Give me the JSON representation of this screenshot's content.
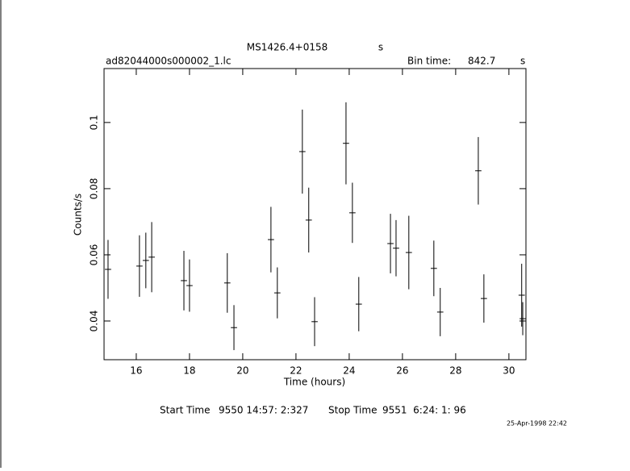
{
  "chart_data": {
    "type": "errorbar",
    "title": "MS1426.4+0158",
    "title_unit": "s",
    "subtitle": "ad82044000s000002_1.lc",
    "bin_time_label": "Bin time:",
    "bin_time": 842.7,
    "bin_time_unit": "s",
    "x_label": "Time (hours)",
    "y_label": "Counts/s",
    "start_time_label": "Start Time",
    "start_time": "9550 14:57: 2:327",
    "stop_time_label": "Stop Time",
    "stop_time": "9551  6:24: 1: 96",
    "date": "25-Apr-1998 22:42",
    "color": "#000000",
    "xlim": [
      14.79,
      30.64
    ],
    "ylim": [
      0.0283,
      0.1163
    ],
    "xticks": [
      16,
      18,
      20,
      22,
      24,
      26,
      28,
      30
    ],
    "yticks": [
      0.04,
      0.06,
      0.08,
      0.1
    ],
    "x_error": 0.117,
    "x": [
      14.94,
      16.12,
      16.36,
      16.58,
      17.79,
      18.0,
      19.42,
      19.67,
      21.06,
      21.3,
      22.24,
      22.48,
      22.7,
      23.88,
      24.12,
      24.36,
      25.55,
      25.76,
      26.24,
      27.18,
      27.42,
      28.85,
      29.06,
      30.48,
      30.52
    ],
    "values": [
      0.0556,
      0.0566,
      0.0583,
      0.0593,
      0.0522,
      0.0507,
      0.0515,
      0.038,
      0.0646,
      0.0485,
      0.0912,
      0.0705,
      0.0398,
      0.0937,
      0.0727,
      0.0451,
      0.0634,
      0.062,
      0.0607,
      0.0559,
      0.0427,
      0.0854,
      0.0468,
      0.0478,
      0.0407
    ],
    "errors": [
      0.0089,
      0.0093,
      0.0084,
      0.0106,
      0.009,
      0.0079,
      0.009,
      0.0068,
      0.0099,
      0.0077,
      0.0127,
      0.0098,
      0.0074,
      0.0124,
      0.0091,
      0.0082,
      0.009,
      0.0085,
      0.0111,
      0.0084,
      0.0073,
      0.0102,
      0.0073,
      0.0095,
      0.005
    ]
  }
}
